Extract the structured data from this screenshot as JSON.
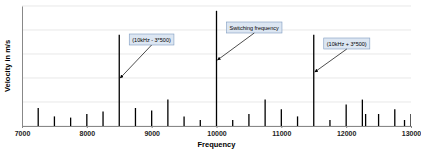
{
  "chart_data": {
    "type": "stem",
    "x_label": "Frequency",
    "y_label": "Velocity in m/s",
    "x": [
      7250,
      7500,
      7750,
      8000,
      8250,
      8500,
      8750,
      9000,
      9250,
      9500,
      9750,
      10000,
      10250,
      10500,
      10750,
      11000,
      11250,
      11500,
      11750,
      12000,
      12250,
      12300,
      12500,
      12750,
      12900,
      13000
    ],
    "values": [
      15,
      8,
      7,
      10,
      12,
      76,
      15,
      13,
      22,
      8,
      5,
      96,
      5,
      10,
      22,
      14,
      8,
      76,
      5,
      18,
      22,
      10,
      10,
      14,
      5,
      10
    ],
    "color": "#000000",
    "xlim": [
      7000,
      13000
    ],
    "xticks": [
      7000,
      8000,
      9000,
      10000,
      11000,
      12000,
      13000
    ],
    "ylim": [
      0,
      100
    ],
    "yticks": [
      0,
      20,
      40,
      60,
      80,
      100
    ],
    "grid": true,
    "tick_labels": "x",
    "annotations": [
      {
        "text": "(10kHz - 3*500)",
        "x": 8500,
        "y": 40
      },
      {
        "text": "Switching frequency",
        "x": 10000,
        "y": 55
      },
      {
        "text": "(10kHz + 3*500)",
        "x": 11500,
        "y": 45
      }
    ]
  }
}
